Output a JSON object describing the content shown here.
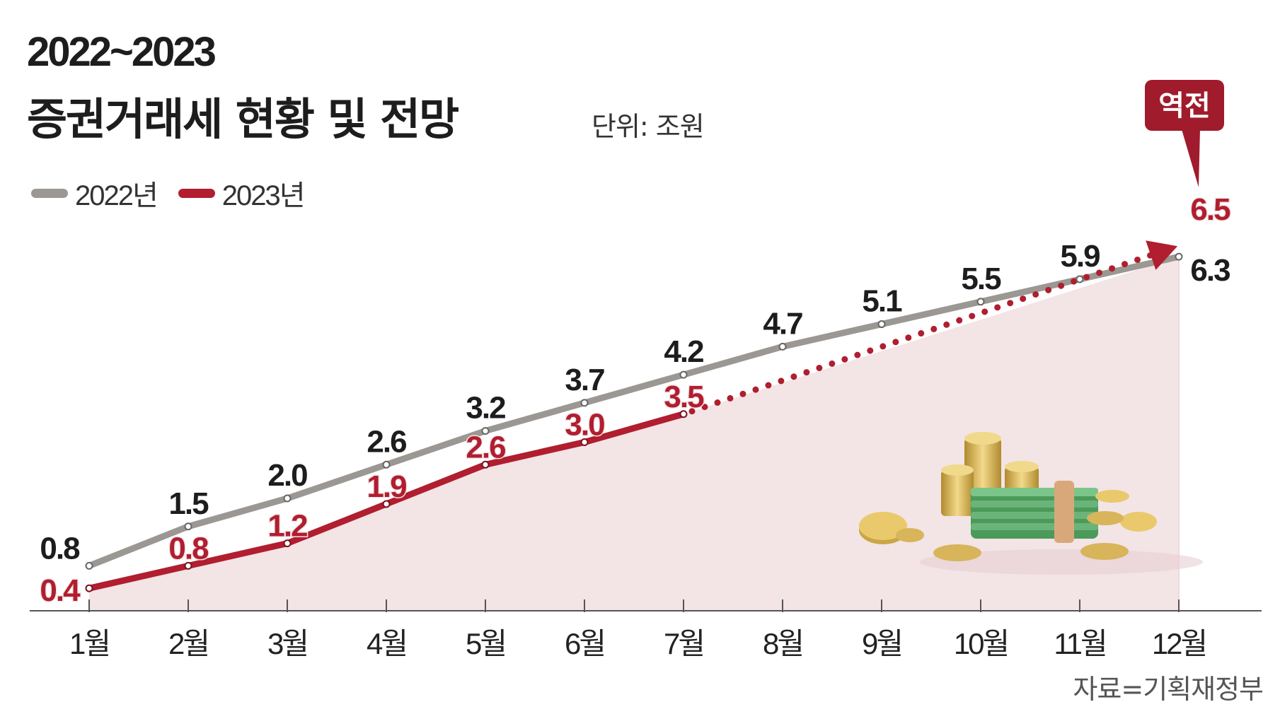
{
  "title": {
    "line1": "2022~2023",
    "line2": "증권거래세 현황 및 전망",
    "unit": "단위: 조원"
  },
  "legend": [
    {
      "label": "2022년",
      "color": "#9b9893"
    },
    {
      "label": "2023년",
      "color": "#b01e2f"
    }
  ],
  "callout": {
    "label": "역전",
    "color": "#a01b2c"
  },
  "source": "자료=기획재정부",
  "colors": {
    "series_2022": "#9b9893",
    "series_2023": "#b01e2f",
    "area_fill": "#f3e4e6"
  },
  "chart_data": {
    "type": "line",
    "title": "증권거래세 현황 및 전망",
    "ylabel": "조원",
    "categories": [
      "1월",
      "2월",
      "3월",
      "4월",
      "5월",
      "6월",
      "7월",
      "8월",
      "9월",
      "10월",
      "11월",
      "12월"
    ],
    "ylim": [
      0,
      7
    ],
    "series": [
      {
        "name": "2022년",
        "values": [
          0.8,
          1.5,
          2.0,
          2.6,
          3.2,
          3.7,
          4.2,
          4.7,
          5.1,
          5.5,
          5.9,
          6.3
        ],
        "labels": [
          "0.8",
          "1.5",
          "2.0",
          "2.6",
          "3.2",
          "3.7",
          "4.2",
          "4.7",
          "5.1",
          "5.5",
          "5.9",
          "6.3"
        ]
      },
      {
        "name": "2023년",
        "values": [
          0.4,
          0.8,
          1.2,
          1.9,
          2.6,
          3.0,
          3.5,
          null,
          null,
          null,
          null,
          6.5
        ],
        "labels": [
          "0.4",
          "0.8",
          "1.2",
          "1.9",
          "2.6",
          "3.0",
          "3.5",
          "",
          "",
          "",
          "",
          "6.5"
        ],
        "projection": {
          "from": "7월",
          "to": "12월",
          "from_value": 3.5,
          "to_value": 6.5,
          "style": "dotted"
        }
      }
    ]
  }
}
